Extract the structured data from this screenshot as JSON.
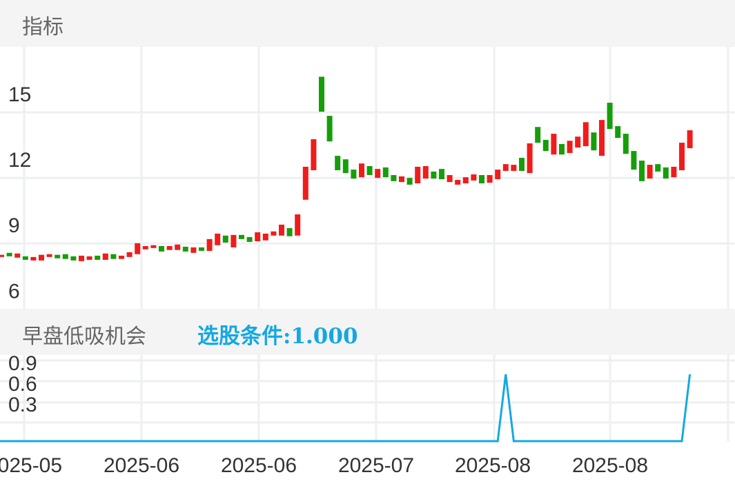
{
  "main_panel": {
    "title": "指标"
  },
  "indicator_panel": {
    "title": "早盘低吸机会",
    "condition_label": "选股条件:1.000"
  },
  "colors": {
    "up": "#f01c1c",
    "down": "#159e0a",
    "signal": "#14a8e2",
    "grid": "#eeeff2",
    "header_bg": "#f4f4f5"
  },
  "chart_data": [
    {
      "type": "candlestick",
      "title": "指标",
      "ylim": [
        6,
        16.8
      ],
      "yticks": [
        "15",
        "12",
        "9",
        "6"
      ],
      "ytick_values": [
        15,
        12,
        9,
        6
      ],
      "grid": true,
      "candles": [
        [
          8.38,
          8.48
        ],
        [
          8.57,
          8.41
        ],
        [
          8.35,
          8.54
        ],
        [
          8.41,
          8.25
        ],
        [
          8.22,
          8.38
        ],
        [
          8.22,
          8.48
        ],
        [
          8.38,
          8.51
        ],
        [
          8.48,
          8.32
        ],
        [
          8.51,
          8.29
        ],
        [
          8.41,
          8.22
        ],
        [
          8.19,
          8.44
        ],
        [
          8.25,
          8.41
        ],
        [
          8.44,
          8.25
        ],
        [
          8.25,
          8.54
        ],
        [
          8.51,
          8.29
        ],
        [
          8.29,
          8.44
        ],
        [
          8.38,
          8.6
        ],
        [
          8.51,
          9.01
        ],
        [
          8.73,
          8.88
        ],
        [
          8.79,
          8.92
        ],
        [
          8.88,
          8.63
        ],
        [
          8.7,
          8.88
        ],
        [
          8.7,
          8.95
        ],
        [
          8.85,
          8.63
        ],
        [
          8.57,
          8.82
        ],
        [
          8.82,
          8.66
        ],
        [
          8.66,
          9.2
        ],
        [
          8.92,
          9.45
        ],
        [
          9.36,
          9.04
        ],
        [
          8.82,
          9.39
        ],
        [
          9.39,
          9.2
        ],
        [
          9.29,
          9.07
        ],
        [
          9.1,
          9.51
        ],
        [
          9.14,
          9.45
        ],
        [
          9.36,
          9.55
        ],
        [
          9.36,
          9.86
        ],
        [
          9.7,
          9.33
        ],
        [
          9.36,
          10.33
        ],
        [
          11.0,
          12.51
        ],
        [
          12.35,
          13.77
        ],
        [
          16.63,
          15.03
        ],
        [
          14.84,
          13.67
        ],
        [
          13.01,
          12.35
        ],
        [
          12.85,
          12.22
        ],
        [
          12.38,
          11.97
        ],
        [
          12.03,
          12.66
        ],
        [
          12.54,
          12.13
        ],
        [
          12.0,
          12.41
        ],
        [
          12.48,
          12.03
        ],
        [
          12.13,
          11.85
        ],
        [
          11.81,
          12.07
        ],
        [
          12.0,
          11.69
        ],
        [
          11.75,
          12.51
        ],
        [
          11.97,
          12.54
        ],
        [
          12.29,
          11.97
        ],
        [
          12.41,
          11.94
        ],
        [
          11.81,
          12.13
        ],
        [
          11.69,
          11.91
        ],
        [
          11.75,
          12.03
        ],
        [
          11.88,
          12.16
        ],
        [
          12.13,
          11.75
        ],
        [
          11.78,
          12.13
        ],
        [
          11.94,
          12.38
        ],
        [
          12.32,
          12.63
        ],
        [
          12.32,
          12.6
        ],
        [
          12.92,
          12.32
        ],
        [
          12.22,
          13.58
        ],
        [
          14.33,
          13.61
        ],
        [
          13.74,
          13.23
        ],
        [
          13.07,
          14.02
        ],
        [
          13.55,
          13.07
        ],
        [
          13.14,
          13.7
        ],
        [
          13.39,
          13.89
        ],
        [
          13.45,
          14.55
        ],
        [
          14.08,
          13.26
        ],
        [
          13.01,
          14.65
        ],
        [
          15.44,
          14.24
        ],
        [
          14.37,
          13.83
        ],
        [
          14.02,
          13.1
        ],
        [
          13.23,
          12.38
        ],
        [
          12.79,
          11.85
        ],
        [
          11.97,
          12.6
        ],
        [
          12.63,
          12.29
        ],
        [
          12.48,
          11.97
        ],
        [
          12.03,
          12.51
        ],
        [
          12.35,
          13.61
        ],
        [
          13.36,
          14.18
        ]
      ]
    },
    {
      "type": "line",
      "title": "早盘低吸机会",
      "yticks": [
        "0.9",
        "0.6",
        "0.3"
      ],
      "grid": true,
      "values": [
        0,
        0,
        0,
        0,
        0,
        0,
        0,
        0,
        0,
        0,
        0,
        0,
        0,
        0,
        0,
        0,
        0,
        0,
        0,
        0,
        0,
        0,
        0,
        0,
        0,
        0,
        0,
        0,
        0,
        0,
        0,
        0,
        0,
        0,
        0,
        0,
        0,
        0,
        0,
        0,
        0,
        0,
        0,
        0,
        0,
        0,
        0,
        0,
        0,
        0,
        0,
        0,
        0,
        0,
        0,
        0,
        0,
        0,
        0,
        0,
        0,
        0,
        0,
        1,
        0,
        0,
        0,
        0,
        0,
        0,
        0,
        0,
        0,
        0,
        0,
        0,
        0,
        0,
        0,
        0,
        0,
        0,
        0,
        0,
        0,
        0,
        1
      ],
      "xticks": [
        "2025-05",
        "2025-06",
        "2025-06",
        "2025-07",
        "2025-08",
        "2025-08"
      ]
    }
  ]
}
